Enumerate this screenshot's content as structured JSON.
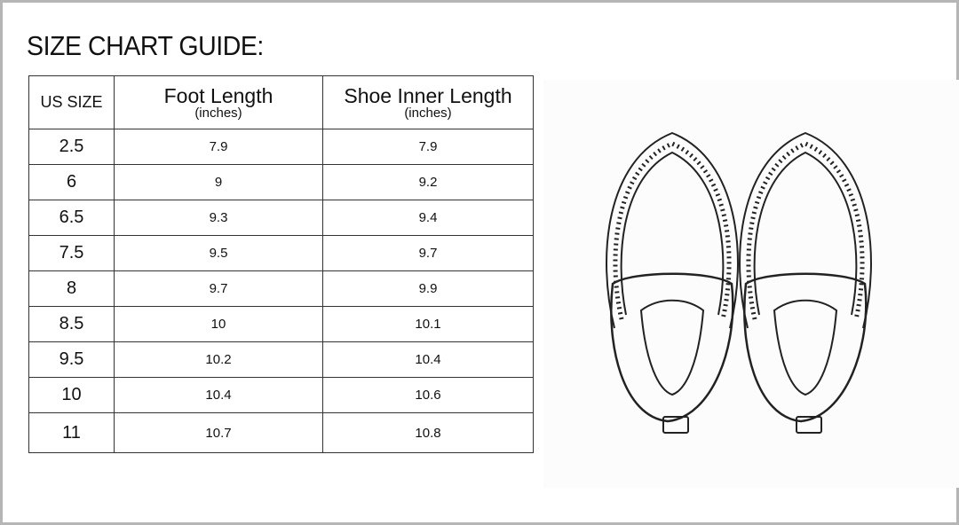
{
  "title": "SIZE CHART GUIDE:",
  "table": {
    "headers": [
      {
        "main": "US SIZE",
        "sub": ""
      },
      {
        "main": "Foot Length",
        "sub": "(inches)"
      },
      {
        "main": "Shoe Inner Length",
        "sub": "(inches)"
      }
    ],
    "rows": [
      [
        "2.5",
        "7.9",
        "7.9"
      ],
      [
        "6",
        "9",
        "9.2"
      ],
      [
        "6.5",
        "9.3",
        "9.4"
      ],
      [
        "7.5",
        "9.5",
        "9.7"
      ],
      [
        "8",
        "9.7",
        "9.9"
      ],
      [
        "8.5",
        "10",
        "10.1"
      ],
      [
        "9.5",
        "10.2",
        "10.4"
      ],
      [
        "10",
        "10.4",
        "10.6"
      ],
      [
        "11",
        "10.7",
        "10.8"
      ]
    ]
  },
  "illustration": {
    "subject": "slippers-line-drawing"
  }
}
